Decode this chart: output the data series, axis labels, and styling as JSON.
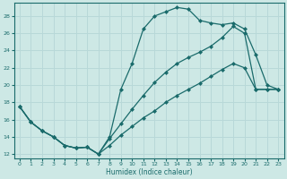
{
  "xlabel": "Humidex (Indice chaleur)",
  "xlim": [
    -0.5,
    23.5
  ],
  "ylim": [
    11.5,
    29.5
  ],
  "yticks": [
    12,
    14,
    16,
    18,
    20,
    22,
    24,
    26,
    28
  ],
  "xticks": [
    0,
    1,
    2,
    3,
    4,
    5,
    6,
    7,
    8,
    9,
    10,
    11,
    12,
    13,
    14,
    15,
    16,
    17,
    18,
    19,
    20,
    21,
    22,
    23
  ],
  "bg_color": "#cde8e5",
  "line_color": "#1a6b6b",
  "grid_color": "#b8d8d8",
  "line1_x": [
    0,
    1,
    2,
    3,
    4,
    5,
    6,
    7,
    8,
    9,
    10,
    11,
    12,
    13,
    14,
    15,
    16,
    17,
    18,
    19,
    20,
    21,
    22,
    23
  ],
  "line1_y": [
    17.5,
    15.7,
    14.7,
    14.0,
    13.0,
    12.7,
    12.8,
    12.0,
    14.0,
    19.5,
    22.5,
    26.5,
    28.0,
    28.5,
    29.0,
    28.8,
    27.5,
    27.2,
    27.0,
    27.2,
    26.5,
    23.5,
    20.0,
    19.5
  ],
  "line2_x": [
    0,
    1,
    2,
    3,
    4,
    5,
    6,
    7,
    8,
    9,
    10,
    11,
    12,
    13,
    14,
    15,
    16,
    17,
    18,
    19,
    20,
    21,
    22,
    23
  ],
  "line2_y": [
    17.5,
    15.7,
    14.7,
    14.0,
    13.0,
    12.7,
    12.8,
    12.0,
    13.8,
    15.5,
    17.2,
    18.8,
    20.3,
    21.5,
    22.5,
    23.2,
    23.8,
    24.5,
    25.5,
    26.8,
    26.0,
    19.5,
    19.5,
    19.5
  ],
  "line3_x": [
    0,
    1,
    2,
    3,
    4,
    5,
    6,
    7,
    8,
    9,
    10,
    11,
    12,
    13,
    14,
    15,
    16,
    17,
    18,
    19,
    20,
    21,
    22,
    23
  ],
  "line3_y": [
    17.5,
    15.7,
    14.7,
    14.0,
    13.0,
    12.7,
    12.8,
    12.0,
    13.0,
    14.2,
    15.2,
    16.2,
    17.0,
    18.0,
    18.8,
    19.5,
    20.2,
    21.0,
    21.8,
    22.5,
    22.0,
    19.5,
    19.5,
    19.5
  ],
  "marker": "D",
  "markersize": 2.0,
  "linewidth": 0.9
}
